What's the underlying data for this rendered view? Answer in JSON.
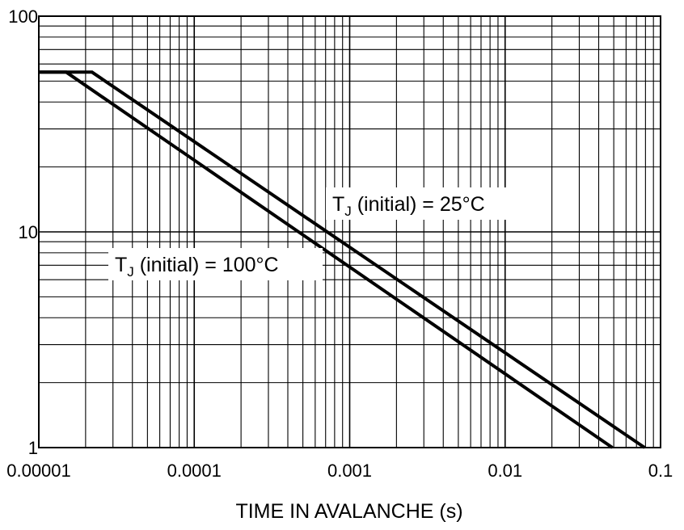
{
  "chart_data": {
    "type": "line",
    "x_scale": "log",
    "y_scale": "log",
    "xlim": [
      1e-05,
      0.1
    ],
    "ylim": [
      1,
      100
    ],
    "grid": true,
    "xlabel": "TIME IN AVALANCHE (s)",
    "ylabel": "",
    "x_tick_labels": [
      "0.00001",
      "0.0001",
      "0.001",
      "0.01",
      "0.1"
    ],
    "y_tick_labels": [
      "1",
      "10",
      "100"
    ],
    "series": [
      {
        "name": "TJ (initial) = 25°C",
        "x": [
          1e-05,
          2.2e-05,
          0.079
        ],
        "y": [
          55,
          55,
          1
        ]
      },
      {
        "name": "TJ (initial) = 100°C",
        "x": [
          1e-05,
          1.5e-05,
          0.049
        ],
        "y": [
          55,
          55,
          1
        ]
      }
    ],
    "annotations": [
      {
        "main": "T",
        "sub": "J",
        "rest": " (initial) = 25°C",
        "series": 0
      },
      {
        "main": "T",
        "sub": "J",
        "rest": " (initial) = 100°C",
        "series": 1
      }
    ]
  }
}
